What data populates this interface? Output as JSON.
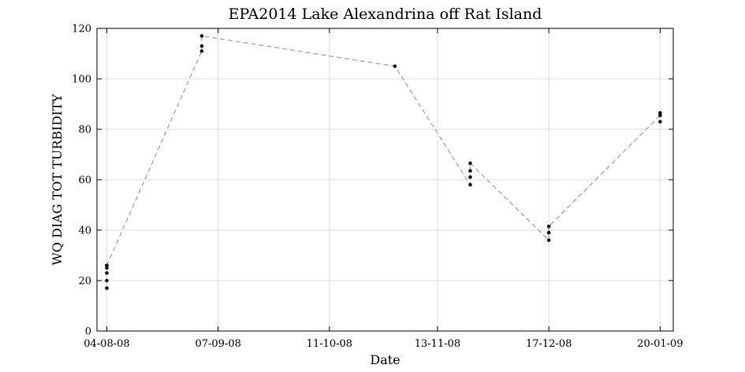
{
  "chart_data": {
    "type": "scatter",
    "title": "EPA2014 Lake Alexandrina off Rat Island",
    "xlabel": "Date",
    "ylabel": "WQ DIAG TOT TURBIDITY",
    "xlim": [
      "2008-08-01",
      "2009-01-24"
    ],
    "ylim": [
      0,
      120
    ],
    "x_ticks": [
      {
        "date": "2008-08-04",
        "label": "04-08-08"
      },
      {
        "date": "2008-09-07",
        "label": "07-09-08"
      },
      {
        "date": "2008-10-11",
        "label": "11-10-08"
      },
      {
        "date": "2008-11-13",
        "label": "13-11-08"
      },
      {
        "date": "2008-12-17",
        "label": "17-12-08"
      },
      {
        "date": "2009-01-20",
        "label": "20-01-09"
      }
    ],
    "y_ticks": [
      0,
      20,
      40,
      60,
      80,
      100,
      120
    ],
    "grid": true,
    "colors": {
      "points": "#111111",
      "line": "#8c8c8c",
      "grid": "#dcdcdc"
    },
    "series": [
      {
        "x": [
          "2008-08-04",
          "2008-08-04",
          "2008-08-04",
          "2008-08-04",
          "2008-08-04",
          "2008-08-04",
          "2008-09-02",
          "2008-09-02",
          "2008-09-02",
          "2008-10-31",
          "2008-11-23",
          "2008-11-23",
          "2008-11-23",
          "2008-11-23",
          "2008-12-17",
          "2008-12-17",
          "2008-12-17",
          "2009-01-20",
          "2009-01-20",
          "2009-01-20"
        ],
        "y": [
          17,
          20,
          23,
          25,
          26,
          26,
          111,
          113,
          117,
          105,
          58,
          61,
          63.5,
          66.5,
          36,
          39,
          41.5,
          83,
          85.5,
          86.5
        ]
      }
    ],
    "connecting_line": {
      "x": [
        "2008-08-04",
        "2008-09-02",
        "2008-09-02",
        "2008-10-31",
        "2008-11-23",
        "2008-11-23",
        "2008-12-17",
        "2008-12-17",
        "2009-01-20"
      ],
      "y": [
        26,
        111,
        117,
        105,
        58,
        66.5,
        36,
        41.5,
        85.5
      ]
    }
  }
}
